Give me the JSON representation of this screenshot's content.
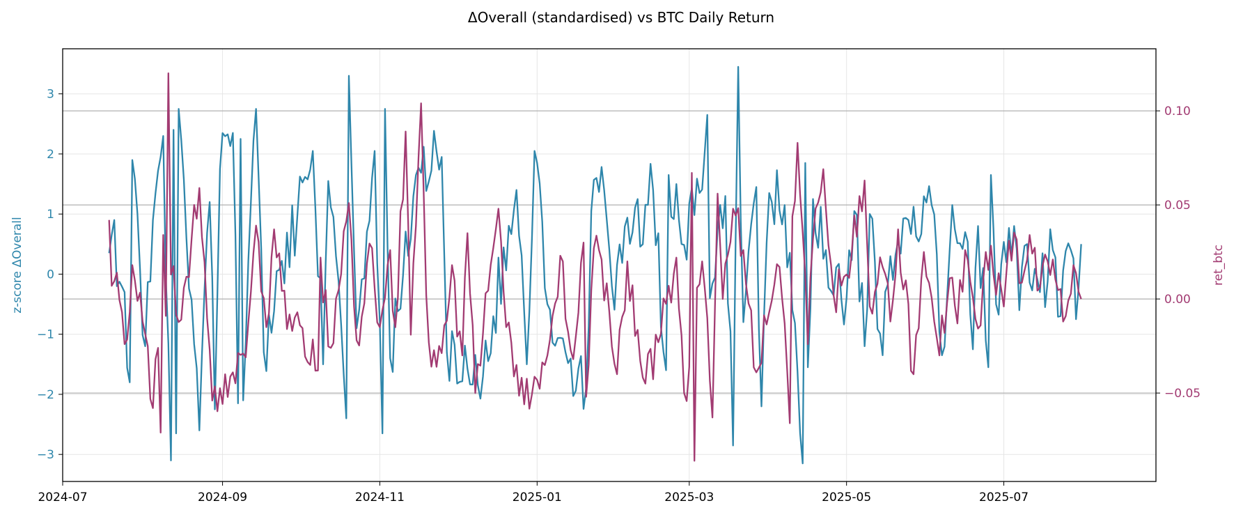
{
  "colors": {
    "left_series": "#2e86ab",
    "right_series": "#a23b72",
    "grid": "#e6e6e6",
    "reference_lines": "#b0b0b0",
    "axes": "#000000"
  },
  "chart_data": {
    "type": "line",
    "title": "ΔOverall (standardised) vs BTC Daily Return",
    "x_axis": {
      "type": "date",
      "range": [
        "2024-07-01",
        "2025-08-29"
      ],
      "ticks": [
        "2024-07-01",
        "2024-09-01",
        "2024-11-01",
        "2025-01-01",
        "2025-03-01",
        "2025-05-01",
        "2025-07-01"
      ],
      "tick_labels": [
        "2024-07",
        "2024-09",
        "2024-11",
        "2025-01",
        "2025-03",
        "2025-05",
        "2025-07"
      ]
    },
    "y_left": {
      "label": "z-score ΔOverall",
      "range": [
        -3.45,
        3.75
      ],
      "ticks": [
        3,
        2,
        1,
        0,
        -1,
        -2,
        -3
      ],
      "tick_labels": [
        "3",
        "2",
        "1",
        "0",
        "−1",
        "−2",
        "−3"
      ],
      "grid": true
    },
    "y_right": {
      "label": "ret_btc",
      "range": [
        -0.097,
        0.133
      ],
      "ticks": [
        0.1,
        0.05,
        0.0,
        -0.05
      ],
      "tick_labels": [
        "0.10",
        "0.05",
        "0.00",
        "−0.05"
      ],
      "reference_lines": [
        0.1,
        0.05,
        0.0,
        -0.05
      ]
    },
    "series": [
      {
        "axis": "left",
        "start": "2024-07-19",
        "end": "2025-07-31",
        "keypoints": [
          [
            "2024-07-19",
            0.35
          ],
          [
            "2024-07-21",
            0.9
          ],
          [
            "2024-07-22",
            -0.2
          ],
          [
            "2024-07-25",
            -0.3
          ],
          [
            "2024-07-27",
            -1.8
          ],
          [
            "2024-07-28",
            1.9
          ],
          [
            "2024-08-02",
            -1.2
          ],
          [
            "2024-08-05",
            0.9
          ],
          [
            "2024-08-09",
            2.3
          ],
          [
            "2024-08-12",
            -3.1
          ],
          [
            "2024-08-13",
            2.4
          ],
          [
            "2024-08-14",
            -2.65
          ],
          [
            "2024-08-15",
            2.75
          ],
          [
            "2024-08-23",
            -2.6
          ],
          [
            "2024-08-27",
            1.2
          ],
          [
            "2024-08-29",
            -2.25
          ],
          [
            "2024-08-31",
            1.75
          ],
          [
            "2024-09-05",
            2.35
          ],
          [
            "2024-09-07",
            -2.15
          ],
          [
            "2024-09-08",
            2.25
          ],
          [
            "2024-09-09",
            -2.1
          ],
          [
            "2024-09-14",
            2.75
          ],
          [
            "2024-09-17",
            -1.3
          ],
          [
            "2024-10-06",
            2.05
          ],
          [
            "2024-10-10",
            -1.5
          ],
          [
            "2024-10-12",
            1.55
          ],
          [
            "2024-10-15",
            0.3
          ],
          [
            "2024-10-19",
            -2.4
          ],
          [
            "2024-10-20",
            3.3
          ],
          [
            "2024-10-23",
            -0.9
          ],
          [
            "2024-10-30",
            2.05
          ],
          [
            "2024-11-02",
            -2.65
          ],
          [
            "2024-11-03",
            2.75
          ],
          [
            "2024-11-05",
            -1.4
          ],
          [
            "2024-11-15",
            1.65
          ],
          [
            "2024-11-25",
            1.95
          ],
          [
            "2024-11-27",
            -1.3
          ],
          [
            "2024-12-11",
            -1.7
          ],
          [
            "2024-12-24",
            1.4
          ],
          [
            "2024-12-28",
            -1.5
          ],
          [
            "2024-12-31",
            2.05
          ],
          [
            "2025-01-05",
            -0.5
          ],
          [
            "2025-01-12",
            -1.3
          ],
          [
            "2025-01-20",
            -1.9
          ],
          [
            "2025-01-22",
            1.05
          ],
          [
            "2025-01-27",
            1.4
          ],
          [
            "2025-01-30",
            -0.2
          ],
          [
            "2025-02-15",
            1.4
          ],
          [
            "2025-02-20",
            -1.6
          ],
          [
            "2025-02-21",
            1.65
          ],
          [
            "2025-02-26",
            0.5
          ],
          [
            "2025-03-05",
            1.35
          ],
          [
            "2025-03-08",
            2.65
          ],
          [
            "2025-03-09",
            -0.4
          ],
          [
            "2025-03-15",
            1.3
          ],
          [
            "2025-03-18",
            -2.85
          ],
          [
            "2025-03-20",
            3.45
          ],
          [
            "2025-03-22",
            -0.8
          ],
          [
            "2025-03-27",
            1.45
          ],
          [
            "2025-03-29",
            -2.2
          ],
          [
            "2025-04-01",
            1.35
          ],
          [
            "2025-04-07",
            1.15
          ],
          [
            "2025-04-10",
            -0.6
          ],
          [
            "2025-04-14",
            -3.15
          ],
          [
            "2025-04-15",
            1.85
          ],
          [
            "2025-04-16",
            -1.55
          ],
          [
            "2025-04-18",
            1.25
          ],
          [
            "2025-04-23",
            0.4
          ],
          [
            "2025-05-01",
            -0.4
          ],
          [
            "2025-05-04",
            1.05
          ],
          [
            "2025-05-08",
            -1.2
          ],
          [
            "2025-05-10",
            1.0
          ],
          [
            "2025-05-15",
            -1.35
          ],
          [
            "2025-05-18",
            0.3
          ],
          [
            "2025-05-25",
            0.9
          ],
          [
            "2025-06-03",
            1.15
          ],
          [
            "2025-06-07",
            -1.35
          ],
          [
            "2025-06-11",
            1.15
          ],
          [
            "2025-06-16",
            0.7
          ],
          [
            "2025-06-19",
            -1.25
          ],
          [
            "2025-06-21",
            0.8
          ],
          [
            "2025-06-25",
            -1.55
          ],
          [
            "2025-06-26",
            1.65
          ],
          [
            "2025-06-28",
            -0.5
          ],
          [
            "2025-07-05",
            0.8
          ],
          [
            "2025-07-07",
            -0.6
          ],
          [
            "2025-07-10",
            0.5
          ],
          [
            "2025-07-15",
            -0.3
          ],
          [
            "2025-07-20",
            0.4
          ],
          [
            "2025-07-23",
            -0.7
          ],
          [
            "2025-07-27",
            0.4
          ],
          [
            "2025-07-29",
            -0.75
          ],
          [
            "2025-07-31",
            0.5
          ]
        ]
      },
      {
        "axis": "right",
        "start": "2024-07-19",
        "end": "2025-07-31",
        "keypoints": [
          [
            "2024-07-19",
            0.042
          ],
          [
            "2024-07-20",
            0.007
          ],
          [
            "2024-07-22",
            0.014
          ],
          [
            "2024-07-24",
            -0.007
          ],
          [
            "2024-07-25",
            -0.024
          ],
          [
            "2024-07-27",
            -0.007
          ],
          [
            "2024-07-28",
            0.018
          ],
          [
            "2024-08-01",
            -0.012
          ],
          [
            "2024-08-03",
            -0.025
          ],
          [
            "2024-08-05",
            -0.058
          ],
          [
            "2024-08-06",
            -0.032
          ],
          [
            "2024-08-07",
            -0.026
          ],
          [
            "2024-08-08",
            -0.071
          ],
          [
            "2024-08-09",
            0.034
          ],
          [
            "2024-08-10",
            -0.009
          ],
          [
            "2024-08-11",
            0.12
          ],
          [
            "2024-08-12",
            0.013
          ],
          [
            "2024-08-16",
            -0.011
          ],
          [
            "2024-08-23",
            0.059
          ],
          [
            "2024-08-28",
            -0.054
          ],
          [
            "2024-09-05",
            -0.039
          ],
          [
            "2024-09-10",
            -0.031
          ],
          [
            "2024-09-14",
            0.039
          ],
          [
            "2024-09-18",
            -0.015
          ],
          [
            "2024-09-21",
            0.037
          ],
          [
            "2024-09-26",
            -0.016
          ],
          [
            "2024-10-01",
            -0.014
          ],
          [
            "2024-10-08",
            -0.038
          ],
          [
            "2024-10-09",
            0.022
          ],
          [
            "2024-10-13",
            -0.026
          ],
          [
            "2024-10-18",
            0.036
          ],
          [
            "2024-10-20",
            0.051
          ],
          [
            "2024-10-23",
            -0.022
          ],
          [
            "2024-10-29",
            0.027
          ],
          [
            "2024-11-01",
            -0.015
          ],
          [
            "2024-11-05",
            0.026
          ],
          [
            "2024-11-07",
            -0.015
          ],
          [
            "2024-11-11",
            0.089
          ],
          [
            "2024-11-12",
            0.04
          ],
          [
            "2024-11-13",
            -0.019
          ],
          [
            "2024-11-17",
            0.104
          ],
          [
            "2024-11-19",
            0.002
          ],
          [
            "2024-11-21",
            -0.036
          ],
          [
            "2024-11-26",
            -0.014
          ],
          [
            "2024-11-29",
            0.018
          ],
          [
            "2024-12-01",
            -0.02
          ],
          [
            "2024-12-03",
            -0.03
          ],
          [
            "2024-12-05",
            0.035
          ],
          [
            "2024-12-08",
            -0.05
          ],
          [
            "2024-12-12",
            0.003
          ],
          [
            "2024-12-17",
            0.048
          ],
          [
            "2024-12-20",
            -0.015
          ],
          [
            "2024-12-27",
            -0.056
          ],
          [
            "2025-01-05",
            -0.03
          ],
          [
            "2025-01-10",
            0.023
          ],
          [
            "2025-01-15",
            -0.032
          ],
          [
            "2025-01-19",
            0.03
          ],
          [
            "2025-01-20",
            -0.052
          ],
          [
            "2025-01-23",
            0.027
          ],
          [
            "2025-01-25",
            0.026
          ],
          [
            "2025-02-01",
            -0.04
          ],
          [
            "2025-02-05",
            0.02
          ],
          [
            "2025-02-12",
            -0.045
          ],
          [
            "2025-02-17",
            -0.023
          ],
          [
            "2025-02-24",
            0.022
          ],
          [
            "2025-02-27",
            -0.05
          ],
          [
            "2025-03-01",
            -0.036
          ],
          [
            "2025-03-02",
            0.067
          ],
          [
            "2025-03-03",
            -0.086
          ],
          [
            "2025-03-04",
            0.006
          ],
          [
            "2025-03-06",
            0.02
          ],
          [
            "2025-03-10",
            -0.063
          ],
          [
            "2025-03-12",
            0.056
          ],
          [
            "2025-03-14",
            0.0
          ],
          [
            "2025-03-18",
            0.048
          ],
          [
            "2025-03-22",
            0.026
          ],
          [
            "2025-03-27",
            -0.039
          ],
          [
            "2025-04-05",
            0.017
          ],
          [
            "2025-04-09",
            -0.066
          ],
          [
            "2025-04-10",
            0.044
          ],
          [
            "2025-04-12",
            0.083
          ],
          [
            "2025-04-16",
            -0.024
          ],
          [
            "2025-04-18",
            0.032
          ],
          [
            "2025-04-22",
            0.069
          ],
          [
            "2025-04-23",
            0.048
          ],
          [
            "2025-04-26",
            0.002
          ],
          [
            "2025-05-01",
            0.013
          ],
          [
            "2025-05-08",
            0.063
          ],
          [
            "2025-05-10",
            -0.004
          ],
          [
            "2025-05-15",
            0.017
          ],
          [
            "2025-05-18",
            -0.012
          ],
          [
            "2025-05-21",
            0.037
          ],
          [
            "2025-05-27",
            -0.04
          ],
          [
            "2025-05-31",
            0.025
          ],
          [
            "2025-06-04",
            -0.012
          ],
          [
            "2025-06-06",
            -0.03
          ],
          [
            "2025-06-10",
            0.011
          ],
          [
            "2025-06-13",
            -0.013
          ],
          [
            "2025-06-16",
            0.026
          ],
          [
            "2025-06-22",
            -0.014
          ],
          [
            "2025-06-24",
            0.025
          ],
          [
            "2025-07-01",
            -0.004
          ],
          [
            "2025-07-03",
            0.031
          ],
          [
            "2025-07-09",
            0.015
          ],
          [
            "2025-07-11",
            0.034
          ],
          [
            "2025-07-15",
            0.006
          ],
          [
            "2025-07-20",
            0.021
          ],
          [
            "2025-07-24",
            -0.012
          ],
          [
            "2025-07-28",
            0.018
          ],
          [
            "2025-07-31",
            0.0
          ]
        ]
      }
    ]
  }
}
